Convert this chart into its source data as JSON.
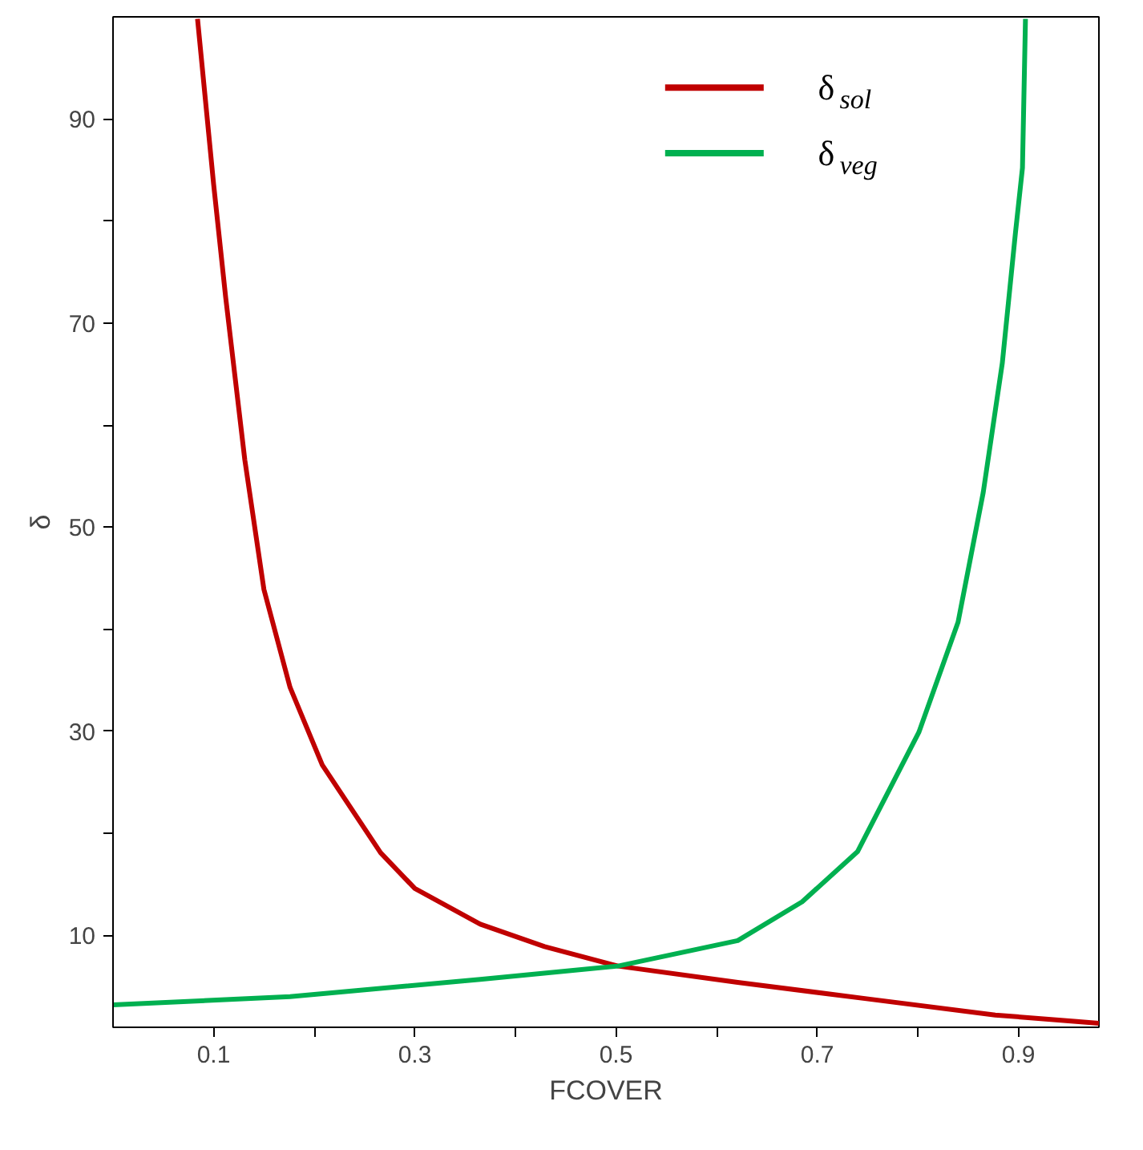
{
  "chart_data": {
    "type": "line",
    "xlabel": "FCOVER",
    "ylabel": "δ",
    "xlim": [
      0,
      0.98
    ],
    "ylim": [
      1,
      100
    ],
    "xticks": [
      0.1,
      {
        "value": 0.2,
        "label": null
      },
      0.3,
      {
        "value": 0.4,
        "label": null
      },
      0.5,
      {
        "value": 0.6,
        "label": null
      },
      0.7,
      {
        "value": 0.8,
        "label": null
      },
      0.9
    ],
    "yticks": [
      10,
      {
        "value": 20,
        "label": null
      },
      30,
      {
        "value": 40,
        "label": null
      },
      50,
      {
        "value": 60,
        "label": null
      },
      70,
      {
        "value": 80,
        "label": null
      },
      90
    ],
    "grid": false,
    "legend": "top right",
    "line_style": "solid",
    "series": [
      {
        "name": "δ$_{sol}$",
        "color": "#c00000",
        "x": [
          0.084,
          0.1,
          0.112,
          0.131,
          0.15,
          0.176,
          0.208,
          0.266,
          0.3,
          0.365,
          0.429,
          0.502,
          0.621,
          0.749,
          0.877,
          0.98
        ],
        "values": [
          99.8,
          83.6,
          72.5,
          56.6,
          43.9,
          34.3,
          26.7,
          18.1,
          14.6,
          11.1,
          8.9,
          7.0,
          5.4,
          3.8,
          2.2,
          1.4
        ]
      },
      {
        "name": "δ$_{veg}$",
        "color": "#00b050",
        "x": [
          0.0,
          0.176,
          0.365,
          0.502,
          0.621,
          0.685,
          0.74,
          0.801,
          0.84,
          0.865,
          0.884,
          0.897,
          0.904,
          0.907
        ],
        "values": [
          3.2,
          4.0,
          5.7,
          7.0,
          9.5,
          13.3,
          18.2,
          29.9,
          40.7,
          53.4,
          66.1,
          78.8,
          85.2,
          99.8
        ]
      }
    ]
  }
}
